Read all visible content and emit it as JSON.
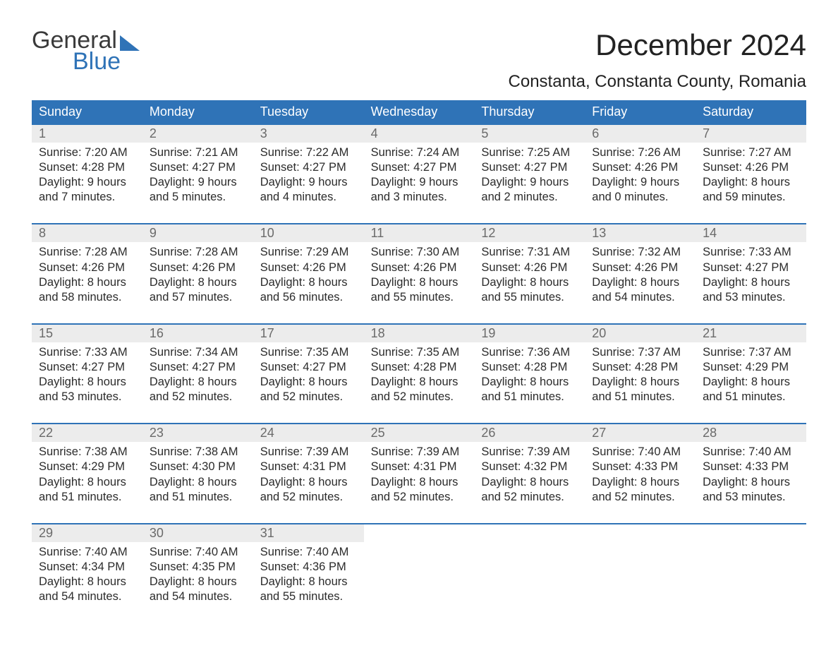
{
  "logo": {
    "word1": "General",
    "word2": "Blue"
  },
  "title": "December 2024",
  "location": "Constanta, Constanta County, Romania",
  "colors": {
    "header_bg": "#2f73b7",
    "header_text": "#ffffff",
    "daynum_bg": "#ececec",
    "daynum_text": "#6a6a6a",
    "body_text": "#2b2b2b",
    "rule": "#2f73b7",
    "page_bg": "#ffffff"
  },
  "fonts": {
    "title_pt": 42,
    "location_pt": 24,
    "dayname_pt": 18,
    "body_pt": 16.5
  },
  "daynames": [
    "Sunday",
    "Monday",
    "Tuesday",
    "Wednesday",
    "Thursday",
    "Friday",
    "Saturday"
  ],
  "labels": {
    "sunrise": "Sunrise:",
    "sunset": "Sunset:",
    "daylight": "Daylight:"
  },
  "weeks": [
    [
      {
        "n": "1",
        "sr": "7:20 AM",
        "ss": "4:28 PM",
        "dh": "9",
        "dm": "7"
      },
      {
        "n": "2",
        "sr": "7:21 AM",
        "ss": "4:27 PM",
        "dh": "9",
        "dm": "5"
      },
      {
        "n": "3",
        "sr": "7:22 AM",
        "ss": "4:27 PM",
        "dh": "9",
        "dm": "4"
      },
      {
        "n": "4",
        "sr": "7:24 AM",
        "ss": "4:27 PM",
        "dh": "9",
        "dm": "3"
      },
      {
        "n": "5",
        "sr": "7:25 AM",
        "ss": "4:27 PM",
        "dh": "9",
        "dm": "2"
      },
      {
        "n": "6",
        "sr": "7:26 AM",
        "ss": "4:26 PM",
        "dh": "9",
        "dm": "0"
      },
      {
        "n": "7",
        "sr": "7:27 AM",
        "ss": "4:26 PM",
        "dh": "8",
        "dm": "59"
      }
    ],
    [
      {
        "n": "8",
        "sr": "7:28 AM",
        "ss": "4:26 PM",
        "dh": "8",
        "dm": "58"
      },
      {
        "n": "9",
        "sr": "7:28 AM",
        "ss": "4:26 PM",
        "dh": "8",
        "dm": "57"
      },
      {
        "n": "10",
        "sr": "7:29 AM",
        "ss": "4:26 PM",
        "dh": "8",
        "dm": "56"
      },
      {
        "n": "11",
        "sr": "7:30 AM",
        "ss": "4:26 PM",
        "dh": "8",
        "dm": "55"
      },
      {
        "n": "12",
        "sr": "7:31 AM",
        "ss": "4:26 PM",
        "dh": "8",
        "dm": "55"
      },
      {
        "n": "13",
        "sr": "7:32 AM",
        "ss": "4:26 PM",
        "dh": "8",
        "dm": "54"
      },
      {
        "n": "14",
        "sr": "7:33 AM",
        "ss": "4:27 PM",
        "dh": "8",
        "dm": "53"
      }
    ],
    [
      {
        "n": "15",
        "sr": "7:33 AM",
        "ss": "4:27 PM",
        "dh": "8",
        "dm": "53"
      },
      {
        "n": "16",
        "sr": "7:34 AM",
        "ss": "4:27 PM",
        "dh": "8",
        "dm": "52"
      },
      {
        "n": "17",
        "sr": "7:35 AM",
        "ss": "4:27 PM",
        "dh": "8",
        "dm": "52"
      },
      {
        "n": "18",
        "sr": "7:35 AM",
        "ss": "4:28 PM",
        "dh": "8",
        "dm": "52"
      },
      {
        "n": "19",
        "sr": "7:36 AM",
        "ss": "4:28 PM",
        "dh": "8",
        "dm": "51"
      },
      {
        "n": "20",
        "sr": "7:37 AM",
        "ss": "4:28 PM",
        "dh": "8",
        "dm": "51"
      },
      {
        "n": "21",
        "sr": "7:37 AM",
        "ss": "4:29 PM",
        "dh": "8",
        "dm": "51"
      }
    ],
    [
      {
        "n": "22",
        "sr": "7:38 AM",
        "ss": "4:29 PM",
        "dh": "8",
        "dm": "51"
      },
      {
        "n": "23",
        "sr": "7:38 AM",
        "ss": "4:30 PM",
        "dh": "8",
        "dm": "51"
      },
      {
        "n": "24",
        "sr": "7:39 AM",
        "ss": "4:31 PM",
        "dh": "8",
        "dm": "52"
      },
      {
        "n": "25",
        "sr": "7:39 AM",
        "ss": "4:31 PM",
        "dh": "8",
        "dm": "52"
      },
      {
        "n": "26",
        "sr": "7:39 AM",
        "ss": "4:32 PM",
        "dh": "8",
        "dm": "52"
      },
      {
        "n": "27",
        "sr": "7:40 AM",
        "ss": "4:33 PM",
        "dh": "8",
        "dm": "52"
      },
      {
        "n": "28",
        "sr": "7:40 AM",
        "ss": "4:33 PM",
        "dh": "8",
        "dm": "53"
      }
    ],
    [
      {
        "n": "29",
        "sr": "7:40 AM",
        "ss": "4:34 PM",
        "dh": "8",
        "dm": "54"
      },
      {
        "n": "30",
        "sr": "7:40 AM",
        "ss": "4:35 PM",
        "dh": "8",
        "dm": "54"
      },
      {
        "n": "31",
        "sr": "7:40 AM",
        "ss": "4:36 PM",
        "dh": "8",
        "dm": "55"
      },
      null,
      null,
      null,
      null
    ]
  ]
}
